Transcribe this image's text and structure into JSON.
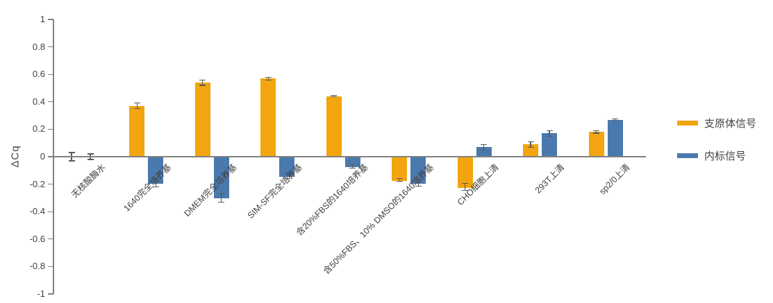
{
  "chart_data": {
    "type": "bar",
    "title": "",
    "ylabel": "ΔCq",
    "ylim": [
      -1,
      1
    ],
    "ytick_step": 0.2,
    "yticks": [
      "1",
      "0.8",
      "0.6",
      "0.4",
      "0.2",
      "0",
      "-0.2",
      "-0.4",
      "-0.6",
      "-0.8",
      "-1"
    ],
    "grid": false,
    "legend_position": "right",
    "categories": [
      "无核酸酶水",
      "1640完全培养基",
      "DMEM完全培养基",
      "SIM-SF完全培养基",
      "含20%FBS的1640培养基",
      "含50%FBS、10% DMSO的1640培养基",
      "CHO细胞上清",
      "293T上清",
      "sp2/0上清"
    ],
    "series": [
      {
        "name": "支原体信号",
        "color": "#F2A50F",
        "values": [
          0,
          0.37,
          0.54,
          0.57,
          0.44,
          -0.17,
          -0.22,
          0.09,
          0.18
        ],
        "errors": [
          0.03,
          0.02,
          0.02,
          0.01,
          0.005,
          0.01,
          0.025,
          0.02,
          0.008
        ]
      },
      {
        "name": "内标信号",
        "color": "#4A79AE",
        "values": [
          0,
          -0.19,
          -0.3,
          -0.14,
          -0.07,
          -0.19,
          0.07,
          0.17,
          0.27
        ],
        "errors": [
          0.02,
          0.03,
          0.03,
          0.02,
          0.012,
          0.025,
          0.02,
          0.02,
          0.004
        ]
      }
    ],
    "axis_color": "#808080",
    "error_bar_color": "#595959",
    "text_color": "#404040"
  }
}
